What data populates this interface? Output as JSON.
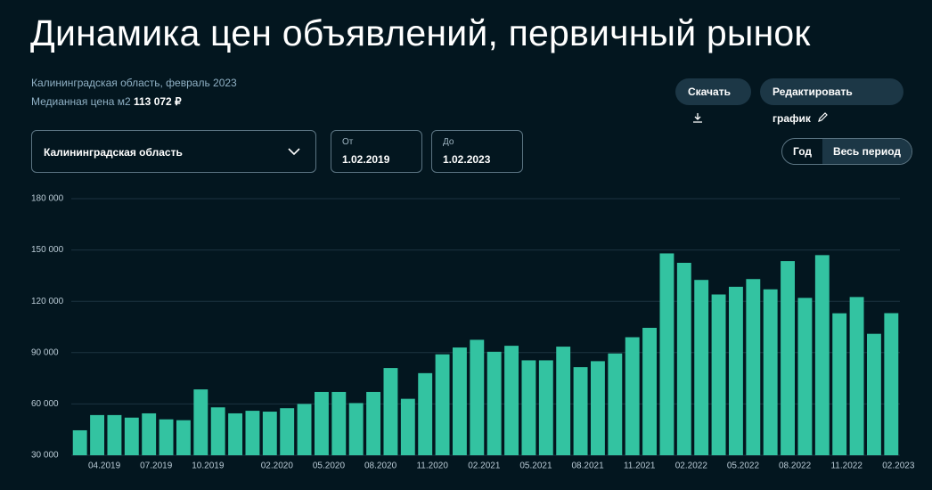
{
  "header": {
    "title": "Динамика цен объявлений, первичный рынок",
    "region_date": "Калининградская область, февраль 2023",
    "median_label": "Медианная цена м2",
    "median_value": "113 072 ₽"
  },
  "buttons": {
    "download": "Скачать",
    "edit": "Редактировать график"
  },
  "filters": {
    "region": "Калининградская область",
    "from_label": "От",
    "from_value": "1.02.2019",
    "to_label": "До",
    "to_value": "1.02.2023",
    "period_year": "Год",
    "period_all": "Весь период"
  },
  "chart_data": {
    "type": "bar",
    "color": "#33c3a1",
    "grid": true,
    "categories": [
      null,
      "04.2019",
      null,
      null,
      "07.2019",
      null,
      null,
      "10.2019",
      null,
      null,
      null,
      "02.2020",
      null,
      null,
      "05.2020",
      null,
      null,
      "08.2020",
      null,
      null,
      "11.2020",
      null,
      null,
      "02.2021",
      null,
      null,
      "05.2021",
      null,
      null,
      "08.2021",
      null,
      null,
      "11.2021",
      null,
      null,
      "02.2022",
      null,
      null,
      "05.2022",
      null,
      null,
      "08.2022",
      null,
      null,
      "11.2022",
      null,
      null,
      "02.2023"
    ],
    "values": [
      44600,
      53500,
      53500,
      52000,
      54500,
      51000,
      50500,
      68500,
      58000,
      54500,
      56000,
      55500,
      57500,
      60000,
      67000,
      67000,
      60500,
      67000,
      81000,
      63000,
      78000,
      89000,
      93000,
      97500,
      90500,
      94000,
      85500,
      85500,
      93500,
      81500,
      85000,
      89500,
      99000,
      104500,
      148000,
      142500,
      132500,
      124000,
      128500,
      133000,
      127000,
      143500,
      122000,
      147000,
      113000,
      122500,
      101000,
      113072
    ],
    "ylim": [
      30000,
      180000
    ],
    "yticks": [
      {
        "value": 30000,
        "label": "30 000"
      },
      {
        "value": 60000,
        "label": "60 000"
      },
      {
        "value": 90000,
        "label": "90 000"
      },
      {
        "value": 120000,
        "label": "120 000"
      },
      {
        "value": 150000,
        "label": "150 000"
      },
      {
        "value": 180000,
        "label": "180 000"
      }
    ]
  }
}
